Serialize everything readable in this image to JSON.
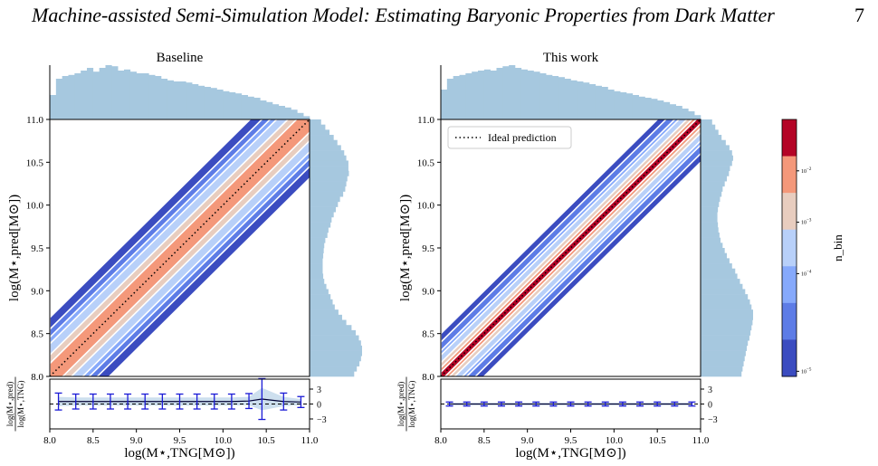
{
  "header": {
    "title": "Machine-assisted Semi-Simulation Model: Estimating Baryonic Properties from Dark Matter",
    "page_number": "7"
  },
  "colors": {
    "histogram": "#a6c8df",
    "errorbar": "#1a1ad6",
    "band": "#c8dcec",
    "contour_levels": [
      "#3b4cc0",
      "#5d7ce6",
      "#86a9fb",
      "#b8d0f9",
      "#e8cdbf",
      "#f4987a",
      "#b40426"
    ]
  },
  "chart_data": [
    {
      "type": "heatmap",
      "title": "Baseline",
      "xlabel": "log(M⋆,TNG[M⊙])",
      "ylabel": "log(M⋆,pred[M⊙])",
      "xlim": [
        8.0,
        11.0
      ],
      "ylim": [
        8.0,
        11.0
      ],
      "x_ticks": [
        "8.0",
        "8.5",
        "9.0",
        "9.5",
        "10.0",
        "10.5",
        "11.0"
      ],
      "y_ticks": [
        "8.0",
        "8.5",
        "9.0",
        "9.5",
        "10.0",
        "10.5",
        "11.0"
      ],
      "ideal_line": [
        [
          8.0,
          8.0
        ],
        [
          11.0,
          11.0
        ]
      ],
      "contour_half_widths_dex": {
        "outer": 0.55,
        "mid": 0.38,
        "inner": 0.25,
        "core": 0.15
      },
      "residual_panel": {
        "ylabel_num": "log(M⋆,pred)",
        "ylabel_den": "log(M⋆,TNG)",
        "y_ticks": [
          "3",
          "0",
          "−3"
        ],
        "ylim": [
          -5,
          5
        ],
        "x": [
          8.1,
          8.3,
          8.5,
          8.7,
          8.9,
          9.1,
          9.3,
          9.5,
          9.7,
          9.9,
          10.1,
          10.3,
          10.45,
          10.7,
          10.9
        ],
        "mean": [
          0.5,
          0.5,
          0.5,
          0.5,
          0.5,
          0.5,
          0.5,
          0.5,
          0.5,
          0.5,
          0.5,
          0.6,
          1.0,
          0.5,
          0.4
        ],
        "err": [
          1.7,
          1.5,
          1.5,
          1.5,
          1.5,
          1.5,
          1.5,
          1.5,
          1.5,
          1.5,
          1.5,
          1.5,
          4.1,
          1.7,
          1.1
        ]
      },
      "top_hist": [
        0.45,
        0.75,
        0.8,
        0.82,
        0.85,
        0.9,
        0.95,
        0.88,
        0.95,
        1.0,
        0.98,
        0.9,
        0.92,
        0.88,
        0.85,
        0.85,
        0.82,
        0.8,
        0.75,
        0.72,
        0.7,
        0.7,
        0.68,
        0.65,
        0.62,
        0.6,
        0.58,
        0.55,
        0.52,
        0.5,
        0.48,
        0.45,
        0.42,
        0.4,
        0.35,
        0.32,
        0.28,
        0.25,
        0.22,
        0.18,
        0.12,
        0.06
      ],
      "right_hist": [
        0.22,
        0.3,
        0.38,
        0.46,
        0.53,
        0.6,
        0.66,
        0.7,
        0.74,
        0.74,
        0.75,
        0.72,
        0.7,
        0.68,
        0.64,
        0.58,
        0.54,
        0.5,
        0.46,
        0.42,
        0.4,
        0.36,
        0.34,
        0.3,
        0.28,
        0.27,
        0.26,
        0.25,
        0.25,
        0.25,
        0.26,
        0.28,
        0.32,
        0.36,
        0.4,
        0.44,
        0.48,
        0.55,
        0.62,
        0.7,
        0.8,
        0.88,
        0.94,
        0.98,
        1.0,
        1.0,
        0.98,
        0.95,
        0.9,
        0.85
      ]
    },
    {
      "type": "heatmap",
      "title": "This work",
      "xlabel": "log(M⋆,TNG[M⊙])",
      "ylabel": "log(M⋆,pred[M⊙])",
      "xlim": [
        8.0,
        11.0
      ],
      "ylim": [
        8.0,
        11.0
      ],
      "x_ticks": [
        "8.0",
        "8.5",
        "9.0",
        "9.5",
        "10.0",
        "10.5",
        "11.0"
      ],
      "y_ticks": [
        "8.0",
        "8.5",
        "9.0",
        "9.5",
        "10.0",
        "10.5",
        "11.0"
      ],
      "legend": {
        "label": "Ideal prediction",
        "placement": "top-left"
      },
      "ideal_line": [
        [
          8.0,
          8.0
        ],
        [
          11.0,
          11.0
        ]
      ],
      "contour_half_widths_dex": {
        "outer": 0.4,
        "mid": 0.25,
        "inner": 0.16,
        "core": 0.1,
        "peak": 0.05
      },
      "residual_panel": {
        "ylabel_num": "log(M⋆,pred)",
        "ylabel_den": "log(M⋆,TNG)",
        "y_ticks": [
          "3",
          "0",
          "−3"
        ],
        "ylim": [
          -5,
          5
        ],
        "x": [
          8.1,
          8.3,
          8.5,
          8.7,
          8.9,
          9.1,
          9.3,
          9.5,
          9.7,
          9.9,
          10.1,
          10.3,
          10.5,
          10.7,
          10.9
        ],
        "mean": [
          0,
          0,
          0,
          0,
          0,
          0,
          0,
          0,
          0,
          0,
          0,
          0,
          0,
          0,
          0
        ],
        "err": [
          0.4,
          0.4,
          0.4,
          0.4,
          0.4,
          0.4,
          0.4,
          0.4,
          0.4,
          0.4,
          0.4,
          0.4,
          0.4,
          0.4,
          0.4
        ]
      },
      "top_hist": [
        0.55,
        0.75,
        0.8,
        0.82,
        0.85,
        0.88,
        0.9,
        0.92,
        0.9,
        0.95,
        0.98,
        1.0,
        0.95,
        0.92,
        0.9,
        0.88,
        0.85,
        0.82,
        0.8,
        0.78,
        0.75,
        0.72,
        0.7,
        0.68,
        0.65,
        0.62,
        0.6,
        0.55,
        0.52,
        0.5,
        0.48,
        0.45,
        0.42,
        0.4,
        0.38,
        0.35,
        0.32,
        0.28,
        0.25,
        0.2,
        0.15,
        0.08
      ],
      "right_hist": [
        0.22,
        0.28,
        0.34,
        0.4,
        0.48,
        0.55,
        0.6,
        0.62,
        0.6,
        0.56,
        0.54,
        0.5,
        0.46,
        0.42,
        0.4,
        0.37,
        0.35,
        0.33,
        0.32,
        0.32,
        0.33,
        0.34,
        0.36,
        0.38,
        0.42,
        0.46,
        0.5,
        0.55,
        0.6,
        0.66,
        0.7,
        0.75,
        0.8,
        0.85,
        0.9,
        0.94,
        0.97,
        1.0,
        1.0,
        0.99,
        0.97,
        0.95,
        0.93,
        0.9,
        0.88,
        0.86,
        0.84,
        0.82,
        0.8,
        0.78
      ]
    }
  ],
  "colorbar": {
    "label": "n_bin",
    "ticks": [
      {
        "exp": "−2",
        "frac": 0.8
      },
      {
        "exp": "−3",
        "frac": 0.6
      },
      {
        "exp": "−4",
        "frac": 0.4
      },
      {
        "exp": "−5",
        "frac": 0.02
      }
    ],
    "tick_base": "10"
  }
}
